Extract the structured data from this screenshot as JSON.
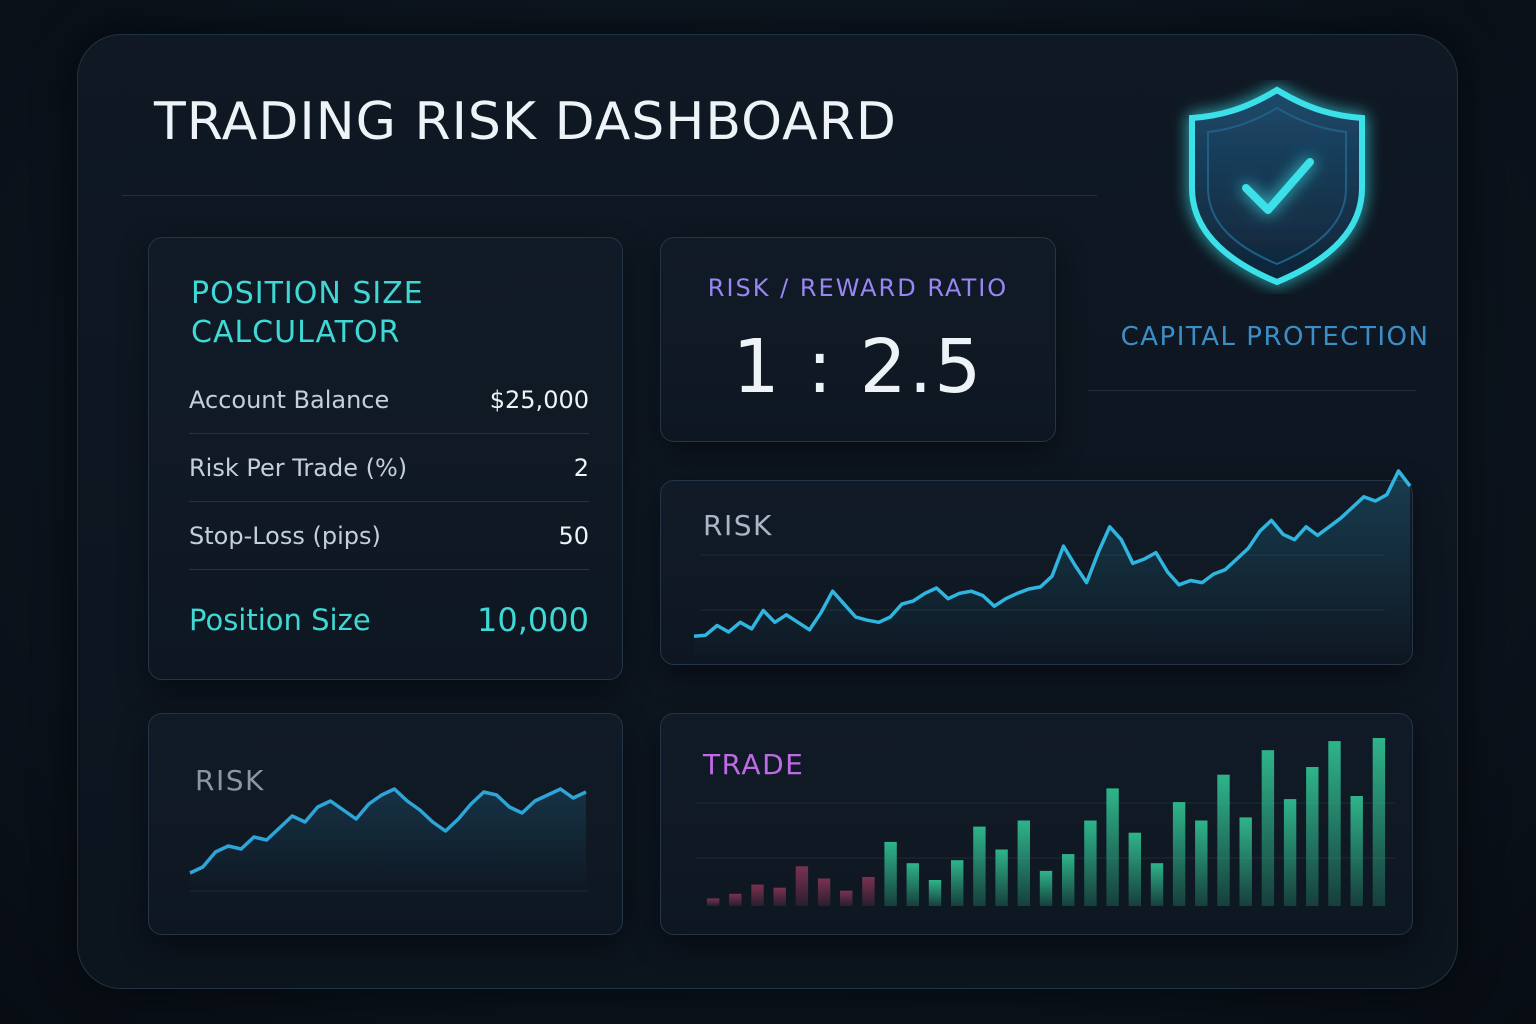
{
  "header": {
    "title": "TRADING RISK DASHBOARD"
  },
  "calculator": {
    "title": "POSITION SIZE CALCULATOR",
    "rows": [
      {
        "label": "Account Balance",
        "value": "$25,000"
      },
      {
        "label": "Risk Per Trade (%)",
        "value": "2"
      },
      {
        "label": "Stop-Loss (pips)",
        "value": "50"
      }
    ],
    "result": {
      "label": "Position Size",
      "value": "10,000"
    }
  },
  "ratio": {
    "label": "RISK / REWARD RATIO",
    "value": "1 : 2.5"
  },
  "protection": {
    "label": "CAPITAL PROTECTION",
    "icon": "shield-check-icon"
  },
  "risk_chart": {
    "title": "RISK",
    "line_color": "#2fb6e0",
    "values": [
      10,
      11,
      20,
      14,
      23,
      17,
      34,
      23,
      30,
      23,
      16,
      32,
      52,
      40,
      28,
      25,
      23,
      28,
      40,
      43,
      50,
      55,
      45,
      50,
      52,
      48,
      38,
      45,
      50,
      54,
      56,
      66,
      94,
      76,
      60,
      88,
      112,
      100,
      78,
      82,
      88,
      70,
      58,
      62,
      60,
      68,
      72,
      82,
      92,
      108,
      118,
      105,
      100,
      112,
      104,
      112,
      120,
      130,
      140,
      136,
      142,
      164,
      150
    ]
  },
  "small_chart": {
    "title": "RISK",
    "line_color": "#2fa4d6",
    "values": [
      4,
      8,
      18,
      22,
      20,
      28,
      26,
      34,
      42,
      38,
      48,
      52,
      46,
      40,
      50,
      56,
      60,
      52,
      46,
      38,
      32,
      40,
      50,
      58,
      56,
      48,
      44,
      52,
      56,
      60,
      54,
      58
    ]
  },
  "trade_chart": {
    "title": "TRADE",
    "colors": {
      "loss": "#7a3251",
      "gain": "#2fb48a"
    },
    "values": [
      5,
      8,
      14,
      12,
      26,
      18,
      10,
      19,
      42,
      28,
      17,
      30,
      52,
      37,
      56,
      23,
      34,
      56,
      77,
      48,
      28,
      68,
      56,
      86,
      58,
      102,
      70,
      91,
      108,
      72,
      110
    ]
  }
}
